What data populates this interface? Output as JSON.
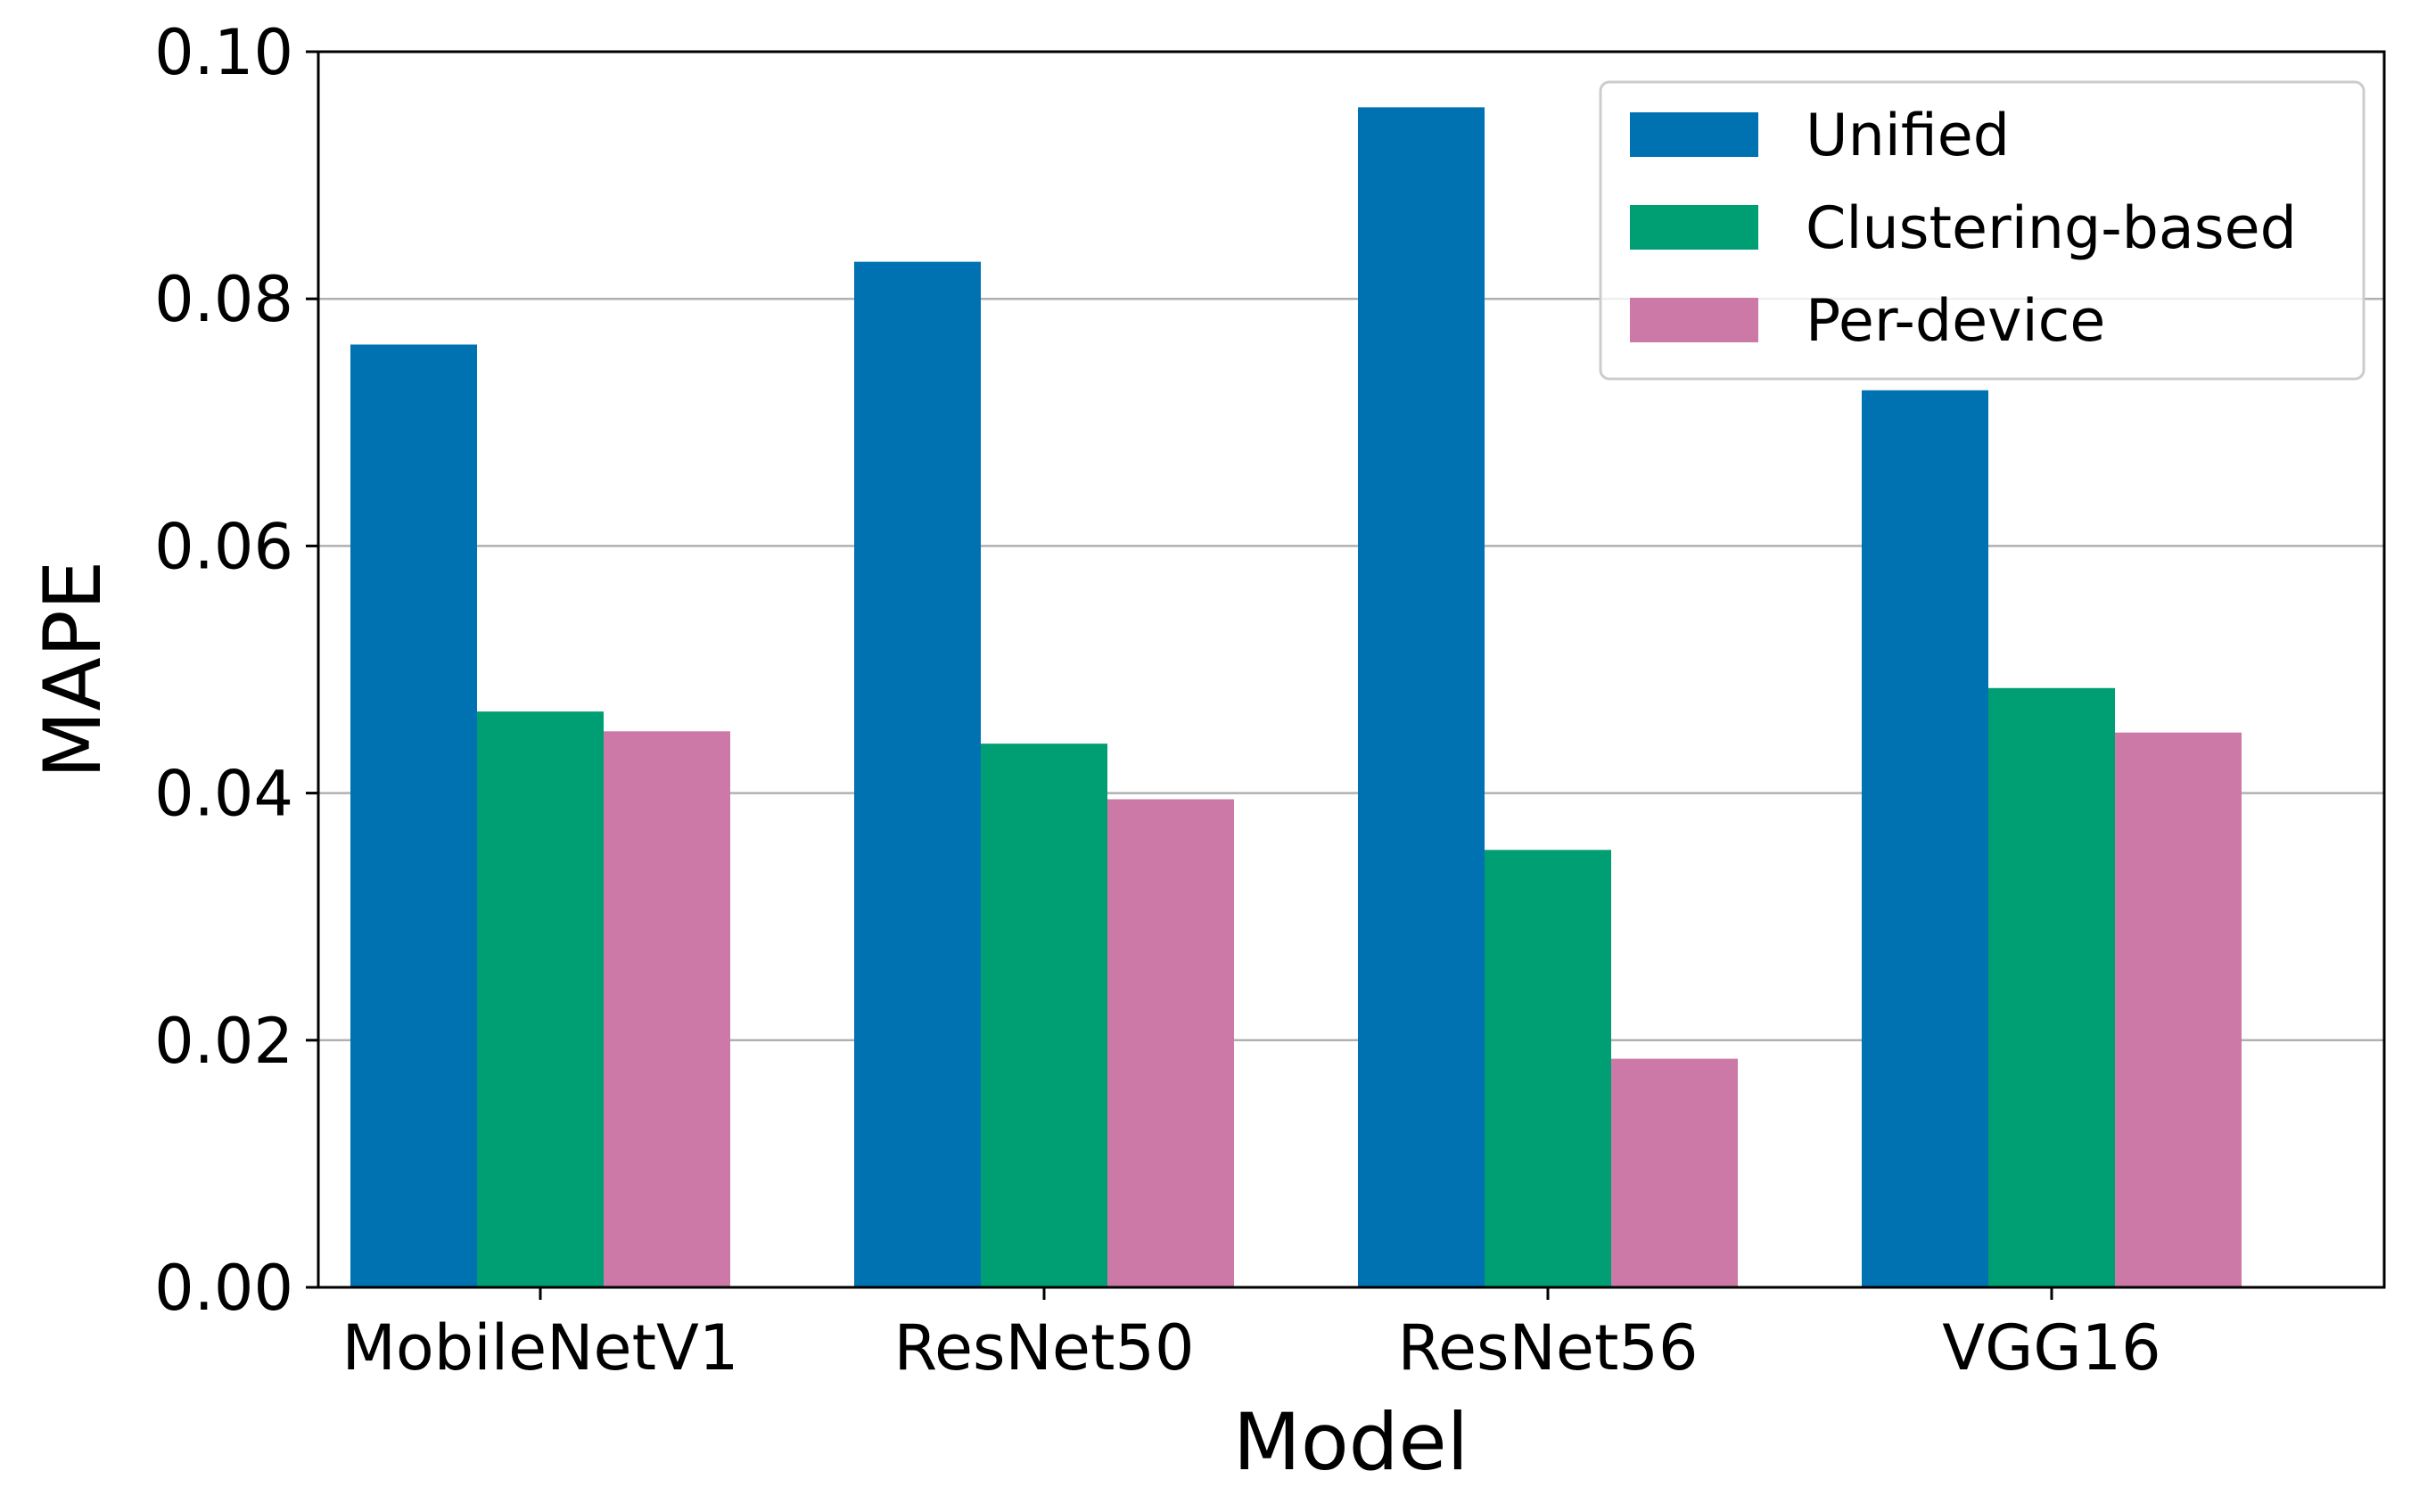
{
  "chart_data": {
    "type": "bar",
    "title": "",
    "xlabel": "Model",
    "ylabel": "MAPE",
    "categories": [
      "MobileNetV1",
      "ResNet50",
      "ResNet56",
      "VGG16"
    ],
    "series": [
      {
        "name": "Unified",
        "color": "#0072b2",
        "values": [
          0.0763,
          0.083,
          0.0955,
          0.0726
        ]
      },
      {
        "name": "Clustering-based",
        "color": "#009e73",
        "values": [
          0.0466,
          0.044,
          0.0354,
          0.0485
        ]
      },
      {
        "name": "Per-device",
        "color": "#cc79a7",
        "values": [
          0.045,
          0.0395,
          0.0185,
          0.0449
        ]
      }
    ],
    "ylim": [
      0,
      0.1
    ],
    "yticks": [
      "0.00",
      "0.02",
      "0.04",
      "0.06",
      "0.08",
      "0.10"
    ],
    "grid": "y",
    "legend_position": "top-right"
  }
}
